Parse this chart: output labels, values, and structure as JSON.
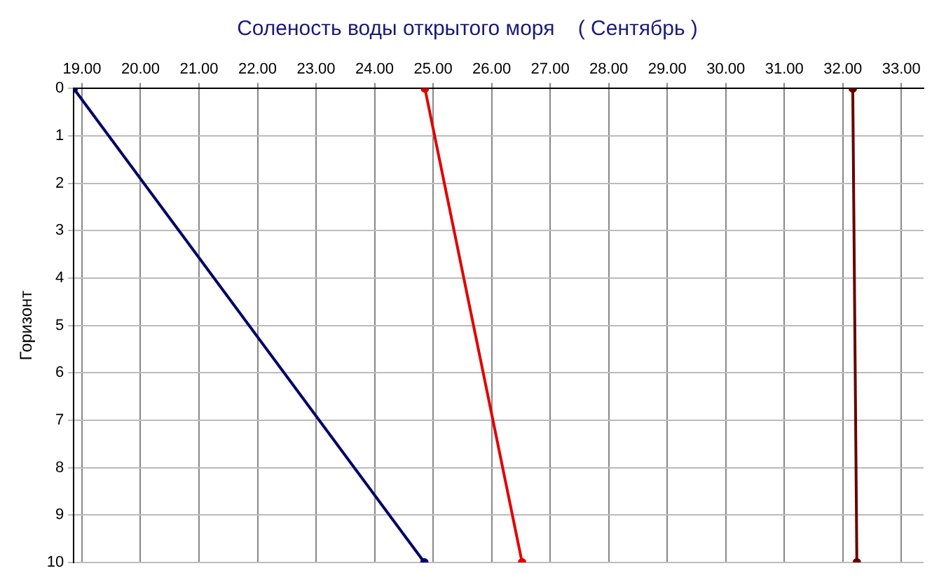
{
  "chart_data": {
    "type": "line",
    "title": "Соленость воды открытого моря    ( Сентябрь )",
    "ylabel": "Горизонт",
    "series": [
      {
        "color": "#000066",
        "x": [
          18.86,
          24.85
        ],
        "values": [
          0,
          10
        ]
      },
      {
        "color": "#e00000",
        "x": [
          24.86,
          26.52
        ],
        "values": [
          0,
          10
        ]
      },
      {
        "color": "#660000",
        "x": [
          32.17,
          32.24
        ],
        "values": [
          0,
          10
        ]
      }
    ],
    "xlim": [
      18.86,
      33.38
    ],
    "xticks": [
      {
        "value": 19,
        "label": "19.00"
      },
      {
        "value": 20,
        "label": "20.00"
      },
      {
        "value": 21,
        "label": "21.00"
      },
      {
        "value": 22,
        "label": "22.00"
      },
      {
        "value": 23,
        "label": "23.00"
      },
      {
        "value": 24,
        "label": "24.00"
      },
      {
        "value": 25,
        "label": "25.00"
      },
      {
        "value": 26,
        "label": "26.00"
      },
      {
        "value": 27,
        "label": "27.00"
      },
      {
        "value": 28,
        "label": "28.00"
      },
      {
        "value": 29,
        "label": "29.00"
      },
      {
        "value": 30,
        "label": "30.00"
      },
      {
        "value": 31,
        "label": "31.00"
      },
      {
        "value": 32,
        "label": "32.00"
      },
      {
        "value": 33,
        "label": "33.00"
      }
    ],
    "ylim": [
      10,
      0
    ],
    "yticks": [
      0,
      1,
      2,
      3,
      4,
      5,
      6,
      7,
      8,
      9,
      10
    ],
    "grid": true,
    "legend": false,
    "marker": "circle",
    "line_style": "solid"
  }
}
